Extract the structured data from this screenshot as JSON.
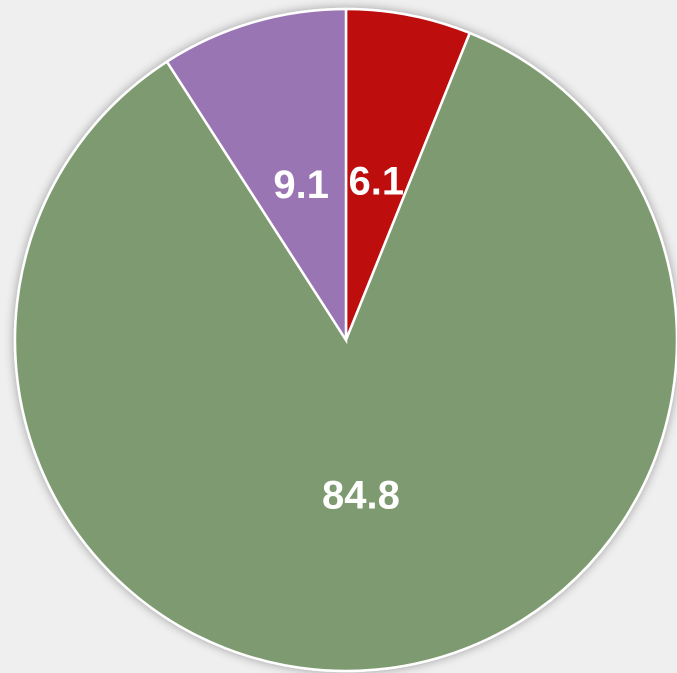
{
  "chart_data": {
    "type": "pie",
    "values": [
      6.1,
      84.8,
      9.1
    ],
    "colors": [
      "#be0c0e",
      "#7e9a6f",
      "#9a74b3"
    ],
    "start_angle": 0,
    "direction": "clockwise"
  }
}
